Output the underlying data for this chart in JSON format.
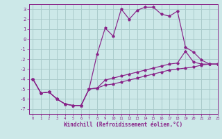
{
  "xlabel": "Windchill (Refroidissement éolien,°C)",
  "background_color": "#cce8e8",
  "grid_color": "#aacccc",
  "line_color": "#882288",
  "xlim": [
    -0.5,
    23
  ],
  "ylim": [
    -7.5,
    3.5
  ],
  "yticks": [
    -7,
    -6,
    -5,
    -4,
    -3,
    -2,
    -1,
    0,
    1,
    2,
    3
  ],
  "xticks": [
    0,
    1,
    2,
    3,
    4,
    5,
    6,
    7,
    8,
    9,
    10,
    11,
    12,
    13,
    14,
    15,
    16,
    17,
    18,
    19,
    20,
    21,
    22,
    23
  ],
  "line1_x": [
    0,
    1,
    2,
    3,
    4,
    5,
    6,
    7,
    8,
    9,
    10,
    11,
    12,
    13,
    14,
    15,
    16,
    17,
    18,
    19,
    20,
    21,
    22,
    23
  ],
  "line1_y": [
    -4.0,
    -5.4,
    -5.3,
    -6.0,
    -6.5,
    -6.65,
    -6.65,
    -5.0,
    -4.9,
    -4.6,
    -4.5,
    -4.3,
    -4.1,
    -3.9,
    -3.7,
    -3.5,
    -3.3,
    -3.1,
    -3.0,
    -2.9,
    -2.8,
    -2.6,
    -2.5,
    -2.5
  ],
  "line2_x": [
    0,
    1,
    2,
    3,
    4,
    5,
    6,
    7,
    8,
    9,
    10,
    11,
    12,
    13,
    14,
    15,
    16,
    17,
    18,
    19,
    20,
    21,
    22,
    23
  ],
  "line2_y": [
    -4.0,
    -5.4,
    -5.3,
    -6.0,
    -6.5,
    -6.65,
    -6.65,
    -5.0,
    -1.5,
    1.1,
    0.3,
    3.0,
    2.0,
    2.9,
    3.2,
    3.2,
    2.5,
    2.3,
    2.8,
    -0.8,
    -1.3,
    -2.1,
    -2.5,
    -2.5
  ],
  "line3_x": [
    0,
    1,
    2,
    3,
    4,
    5,
    6,
    7,
    8,
    9,
    10,
    11,
    12,
    13,
    14,
    15,
    16,
    17,
    18,
    19,
    20,
    21,
    22,
    23
  ],
  "line3_y": [
    -4.0,
    -5.4,
    -5.3,
    -6.0,
    -6.5,
    -6.65,
    -6.65,
    -5.0,
    -4.9,
    -4.1,
    -3.9,
    -3.7,
    -3.5,
    -3.3,
    -3.1,
    -2.9,
    -2.7,
    -2.5,
    -2.4,
    -1.2,
    -2.3,
    -2.5,
    -2.5,
    -2.5
  ]
}
